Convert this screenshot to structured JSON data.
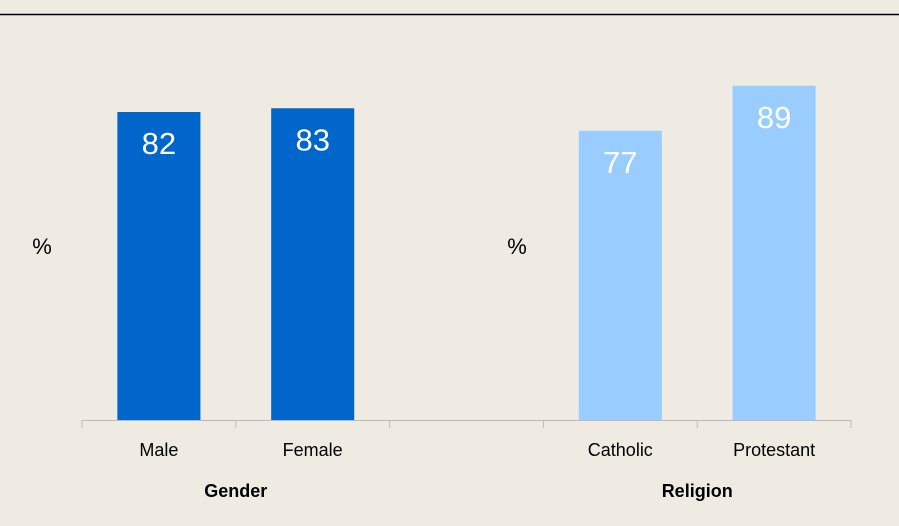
{
  "chart_data": {
    "type": "bar",
    "ylim": [
      0,
      100
    ],
    "groups": [
      {
        "name": "Gender",
        "y_label": "%",
        "color": "#0066cc",
        "categories": [
          "Male",
          "Female"
        ],
        "values": [
          82,
          83
        ]
      },
      {
        "name": "Religion",
        "y_label": "%",
        "color": "#99ccff",
        "categories": [
          "Catholic",
          "Protestant"
        ],
        "values": [
          77,
          89
        ]
      }
    ]
  }
}
